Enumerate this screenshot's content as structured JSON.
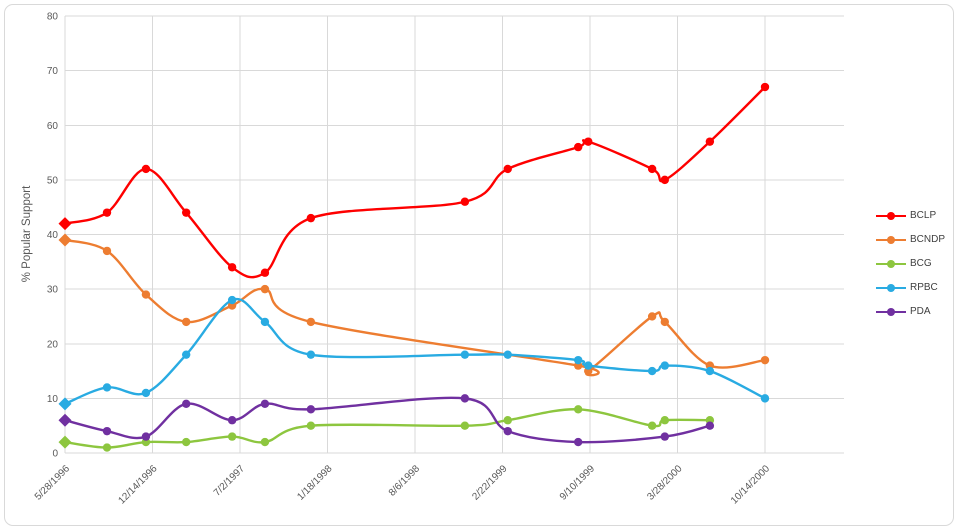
{
  "chart_data": {
    "type": "line",
    "title": "",
    "xlabel": "",
    "ylabel": "% Popular Support",
    "ylim": [
      0,
      80
    ],
    "y_ticks": [
      0,
      10,
      20,
      30,
      40,
      50,
      60,
      70,
      80
    ],
    "grid": true,
    "line_style": "smooth",
    "marker_shapes": {
      "first_point": "diamond",
      "other_points": "circle"
    },
    "legend_position": "right",
    "x_axis": {
      "kind": "date",
      "tick_interval_days": 200,
      "domain_days": [
        0,
        1780
      ],
      "tick_days": [
        0,
        200,
        400,
        600,
        800,
        1000,
        1200,
        1400,
        1600
      ],
      "tick_labels": [
        "5/28/1996",
        "12/14/1996",
        "7/2/1997",
        "1/18/1998",
        "8/6/1998",
        "2/22/1999",
        "9/10/1999",
        "3/28/2000",
        "10/14/2000"
      ],
      "tick_label_rotation_deg": -45
    },
    "series": [
      {
        "name": "BCLP",
        "color": "#fe0000",
        "points": [
          [
            0,
            42
          ],
          [
            96,
            44
          ],
          [
            185,
            52
          ],
          [
            277,
            44
          ],
          [
            382,
            34
          ],
          [
            457,
            33
          ],
          [
            562,
            43
          ],
          [
            914,
            46
          ],
          [
            1012,
            52
          ],
          [
            1173,
            56
          ],
          [
            1196,
            57
          ],
          [
            1342,
            52
          ],
          [
            1371,
            50
          ],
          [
            1474,
            57
          ],
          [
            1600,
            67
          ]
        ]
      },
      {
        "name": "BCNDP",
        "color": "#ed7d31",
        "points": [
          [
            0,
            39
          ],
          [
            96,
            37
          ],
          [
            185,
            29
          ],
          [
            277,
            24
          ],
          [
            382,
            27
          ],
          [
            457,
            30
          ],
          [
            562,
            24
          ],
          [
            1173,
            16
          ],
          [
            1196,
            15
          ],
          [
            1342,
            25
          ],
          [
            1371,
            24
          ],
          [
            1474,
            16
          ],
          [
            1600,
            17
          ]
        ]
      },
      {
        "name": "BCG",
        "color": "#8dc63f",
        "points": [
          [
            0,
            2
          ],
          [
            96,
            1
          ],
          [
            185,
            2
          ],
          [
            277,
            2
          ],
          [
            382,
            3
          ],
          [
            457,
            2
          ],
          [
            562,
            5
          ],
          [
            914,
            5
          ],
          [
            1012,
            6
          ],
          [
            1173,
            8
          ],
          [
            1342,
            5
          ],
          [
            1371,
            6
          ],
          [
            1474,
            6
          ]
        ]
      },
      {
        "name": "RPBC",
        "color": "#29abe2",
        "points": [
          [
            0,
            9
          ],
          [
            96,
            12
          ],
          [
            185,
            11
          ],
          [
            277,
            18
          ],
          [
            382,
            28
          ],
          [
            457,
            24
          ],
          [
            562,
            18
          ],
          [
            914,
            18
          ],
          [
            1012,
            18
          ],
          [
            1173,
            17
          ],
          [
            1196,
            16
          ],
          [
            1342,
            15
          ],
          [
            1371,
            16
          ],
          [
            1474,
            15
          ],
          [
            1600,
            10
          ]
        ]
      },
      {
        "name": "PDA",
        "color": "#7030a0",
        "points": [
          [
            0,
            6
          ],
          [
            96,
            4
          ],
          [
            185,
            3
          ],
          [
            277,
            9
          ],
          [
            382,
            6
          ],
          [
            457,
            9
          ],
          [
            562,
            8
          ],
          [
            914,
            10
          ],
          [
            1012,
            4
          ],
          [
            1173,
            2
          ],
          [
            1371,
            3
          ],
          [
            1474,
            5
          ]
        ]
      }
    ],
    "style_colors": {
      "gridline": "#d9d9d9",
      "axis_tick_text": "#595959",
      "axis_title_text": "#595959",
      "legend_text": "#404040",
      "chart_border": "#d9d9d9",
      "background": "#ffffff"
    }
  }
}
